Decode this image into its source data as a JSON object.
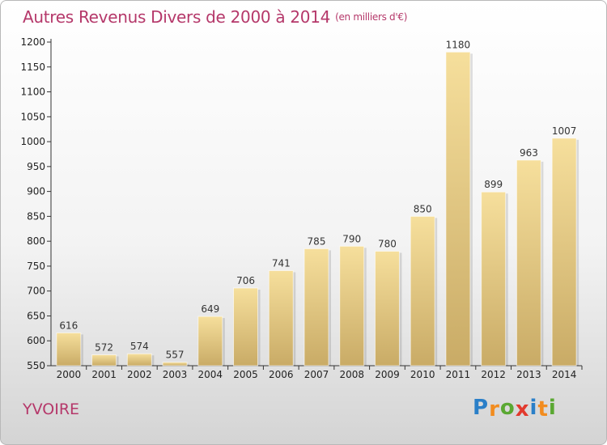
{
  "title": "Autres Revenus Divers de 2000 à 2014",
  "subtitle": "(en milliers d'€)",
  "town": "YVOIRE",
  "logo": {
    "letters": [
      "P",
      "r",
      "o",
      "x",
      "i",
      "t",
      "i"
    ],
    "colors": [
      "#2a7fc8",
      "#f28c1f",
      "#5aa832",
      "#e23a2e",
      "#2a7fc8",
      "#f28c1f",
      "#5aa832"
    ]
  },
  "chart_data": {
    "type": "bar",
    "categories": [
      "2000",
      "2001",
      "2002",
      "2003",
      "2004",
      "2005",
      "2006",
      "2007",
      "2008",
      "2009",
      "2010",
      "2011",
      "2012",
      "2013",
      "2014"
    ],
    "values": [
      616,
      572,
      574,
      557,
      649,
      706,
      741,
      785,
      790,
      780,
      850,
      1180,
      899,
      963,
      1007
    ],
    "data_labels": [
      "616",
      "572",
      "574",
      "557",
      "649",
      "706",
      "741",
      "785",
      "790",
      "780",
      "850",
      "1180",
      "899",
      "963",
      "1007"
    ],
    "title": "Autres Revenus Divers de 2000 à 2014",
    "xlabel": "",
    "ylabel": "",
    "ylim": [
      550,
      1200
    ],
    "yticks": [
      550,
      600,
      650,
      700,
      750,
      800,
      850,
      900,
      950,
      1000,
      1050,
      1100,
      1150,
      1200
    ],
    "grid": false,
    "bar_color": "#e8c57a"
  }
}
